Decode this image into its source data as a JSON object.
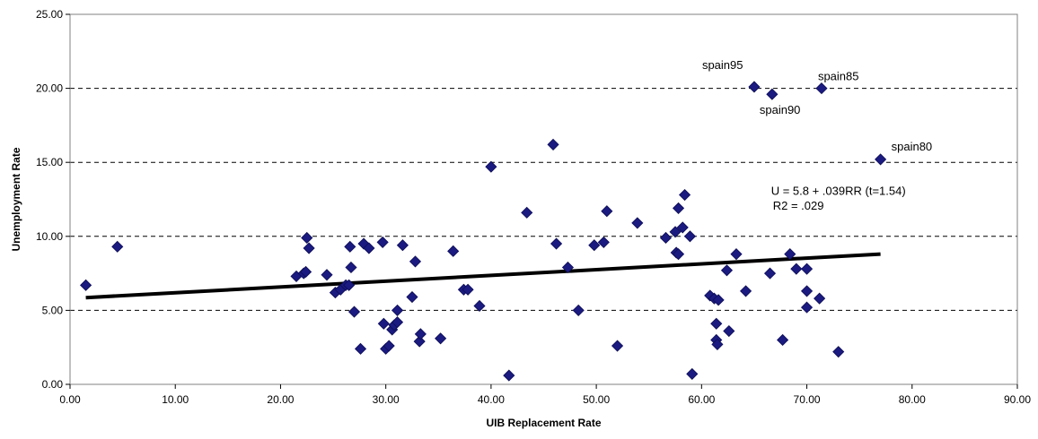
{
  "chart_data": {
    "type": "scatter",
    "title": "",
    "xlabel": "UIB Replacement Rate",
    "ylabel": "Unemployment Rate",
    "xlim": [
      0,
      90
    ],
    "ylim": [
      0,
      25
    ],
    "x_ticks": [
      "0.00",
      "10.00",
      "20.00",
      "30.00",
      "40.00",
      "50.00",
      "60.00",
      "70.00",
      "80.00",
      "90.00"
    ],
    "y_ticks": [
      "0.00",
      "5.00",
      "10.00",
      "15.00",
      "20.00",
      "25.00"
    ],
    "grid": "horizontal dashed",
    "marker_color": "#1a1a80",
    "trend_color": "#000000",
    "points": [
      [
        1.5,
        6.7
      ],
      [
        4.5,
        9.3
      ],
      [
        21.5,
        7.3
      ],
      [
        22.2,
        7.5
      ],
      [
        22.4,
        7.6
      ],
      [
        22.5,
        9.9
      ],
      [
        22.7,
        9.2
      ],
      [
        24.4,
        7.4
      ],
      [
        25.2,
        6.2
      ],
      [
        25.7,
        6.4
      ],
      [
        26.2,
        6.7
      ],
      [
        26.5,
        6.7
      ],
      [
        26.6,
        9.3
      ],
      [
        26.7,
        7.9
      ],
      [
        27.0,
        4.9
      ],
      [
        27.6,
        2.4
      ],
      [
        27.9,
        9.5
      ],
      [
        28.4,
        9.2
      ],
      [
        29.7,
        9.6
      ],
      [
        29.8,
        4.1
      ],
      [
        30.0,
        2.4
      ],
      [
        30.3,
        2.6
      ],
      [
        30.6,
        3.7
      ],
      [
        30.8,
        4.0
      ],
      [
        31.1,
        4.2
      ],
      [
        31.1,
        5.0
      ],
      [
        31.6,
        9.4
      ],
      [
        32.5,
        5.9
      ],
      [
        32.8,
        8.3
      ],
      [
        33.2,
        2.9
      ],
      [
        33.3,
        3.4
      ],
      [
        35.2,
        3.1
      ],
      [
        36.4,
        9.0
      ],
      [
        37.4,
        6.4
      ],
      [
        37.8,
        6.4
      ],
      [
        38.9,
        5.3
      ],
      [
        40.0,
        14.7
      ],
      [
        41.7,
        0.6
      ],
      [
        43.4,
        11.6
      ],
      [
        45.9,
        16.2
      ],
      [
        46.2,
        9.5
      ],
      [
        47.3,
        7.9
      ],
      [
        48.3,
        5.0
      ],
      [
        49.8,
        9.4
      ],
      [
        50.7,
        9.6
      ],
      [
        51.0,
        11.7
      ],
      [
        52.0,
        2.6
      ],
      [
        53.9,
        10.9
      ],
      [
        56.6,
        9.9
      ],
      [
        57.5,
        10.3
      ],
      [
        57.6,
        8.9
      ],
      [
        57.8,
        8.8
      ],
      [
        57.8,
        11.9
      ],
      [
        58.2,
        10.6
      ],
      [
        58.4,
        12.8
      ],
      [
        58.9,
        10.0
      ],
      [
        59.1,
        0.7
      ],
      [
        60.8,
        6.0
      ],
      [
        61.2,
        5.8
      ],
      [
        61.4,
        4.1
      ],
      [
        61.4,
        3.0
      ],
      [
        61.5,
        2.7
      ],
      [
        61.6,
        5.7
      ],
      [
        62.4,
        7.7
      ],
      [
        62.6,
        3.6
      ],
      [
        63.3,
        8.8
      ],
      [
        64.2,
        6.3
      ],
      [
        65.0,
        20.1
      ],
      [
        66.5,
        7.5
      ],
      [
        66.7,
        19.6
      ],
      [
        67.7,
        3.0
      ],
      [
        68.4,
        8.8
      ],
      [
        69.0,
        7.8
      ],
      [
        70.0,
        7.8
      ],
      [
        70.0,
        6.3
      ],
      [
        70.0,
        5.2
      ],
      [
        71.2,
        5.8
      ],
      [
        71.4,
        20.0
      ],
      [
        73.0,
        2.2
      ],
      [
        77.0,
        15.2
      ]
    ],
    "trendline": {
      "intercept": 5.8,
      "slope": 0.039,
      "x_range": [
        1.5,
        77.0
      ]
    },
    "annotations": [
      {
        "text": "spain95",
        "x": 65.0,
        "y": 20.1
      },
      {
        "text": "spain90",
        "x": 66.7,
        "y": 19.6
      },
      {
        "text": "spain85",
        "x": 71.4,
        "y": 20.0
      },
      {
        "text": "spain80",
        "x": 77.0,
        "y": 15.2
      },
      {
        "text": "U = 5.8 + .039RR (t=1.54)",
        "x": 73.0,
        "y": 12.8
      },
      {
        "text": "R2 = .029",
        "x": 73.0,
        "y": 11.8
      }
    ]
  }
}
